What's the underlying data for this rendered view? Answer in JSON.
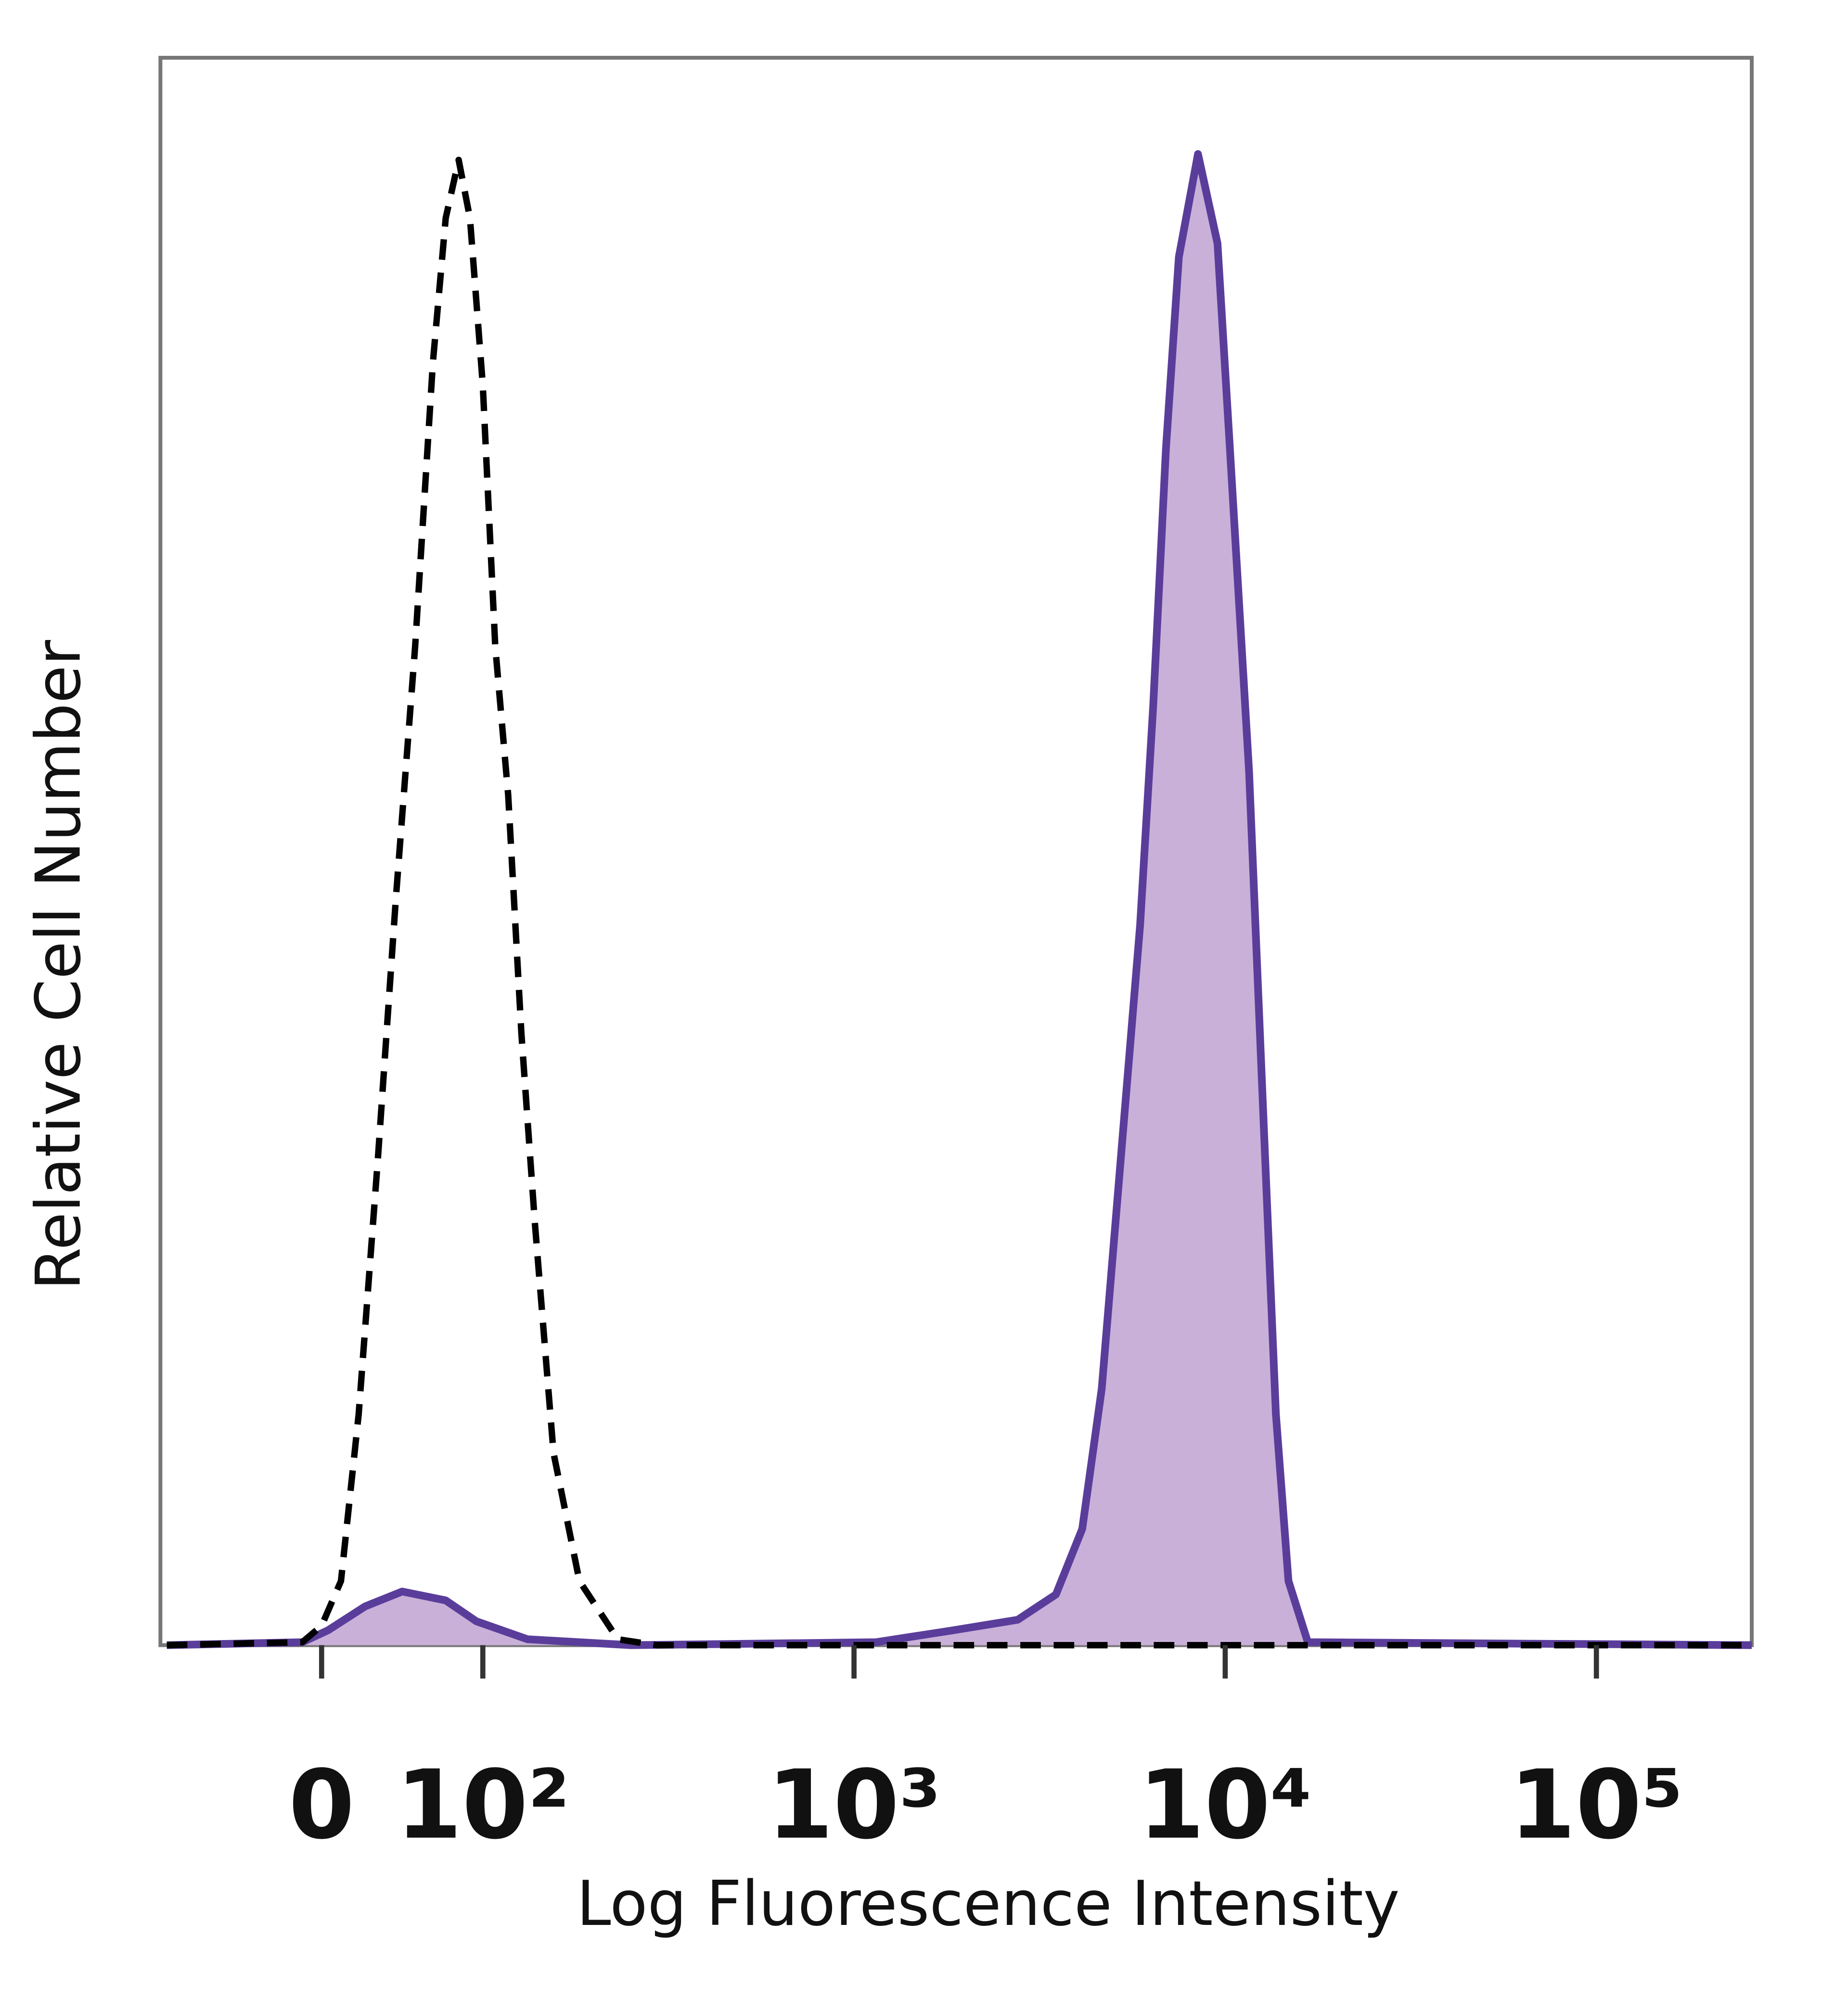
{
  "chart_data": {
    "type": "histogram-overlay",
    "x_label": "Log Fluorescence Intensity",
    "y_label": "Relative Cell Number",
    "xscale": "biexponential",
    "xlim": [
      -100,
      262144
    ],
    "ylim": [
      0,
      100
    ],
    "xticks": [
      0,
      {
        "value": 100,
        "label": "10²"
      },
      {
        "value": 1000,
        "label": "10³"
      },
      {
        "value": 10000,
        "label": "10⁴"
      },
      {
        "value": 100000,
        "label": "10⁵"
      }
    ],
    "series": [
      {
        "color": "#000000",
        "dashed": true,
        "x": [
          -96,
          -12,
          0,
          12,
          23,
          35,
          46,
          58,
          69,
          77,
          85,
          92,
          100,
          108,
          117,
          127,
          138,
          155,
          182,
          231,
          294,
          262144
        ],
        "values": [
          0,
          0.2,
          1.3,
          4.3,
          15.5,
          32.8,
          50,
          67,
          86,
          95.7,
          99.6,
          95.7,
          84.5,
          67,
          57,
          41,
          28.4,
          12.9,
          4.3,
          0.4,
          0,
          0
        ]
      },
      {
        "color": "#5a3d9a",
        "fill": "#c9b0d9",
        "x": [
          -96,
          -12,
          4,
          27,
          50,
          77,
          96,
          132,
          251,
          1146,
          1850,
          2760,
          3500,
          4120,
          4650,
          5240,
          5900,
          6400,
          6920,
          7500,
          8450,
          9530,
          10300,
          11600,
          12600,
          13700,
          14800,
          16700,
          262144
        ],
        "values": [
          0,
          0.2,
          1.0,
          2.6,
          3.6,
          3.0,
          1.6,
          0.4,
          0,
          0.2,
          1.0,
          1.7,
          3.4,
          7.8,
          17.2,
          32.8,
          48.3,
          63,
          80.2,
          93.1,
          100,
          94,
          80.2,
          58.6,
          37,
          15.5,
          4.3,
          0.2,
          0
        ]
      }
    ]
  }
}
